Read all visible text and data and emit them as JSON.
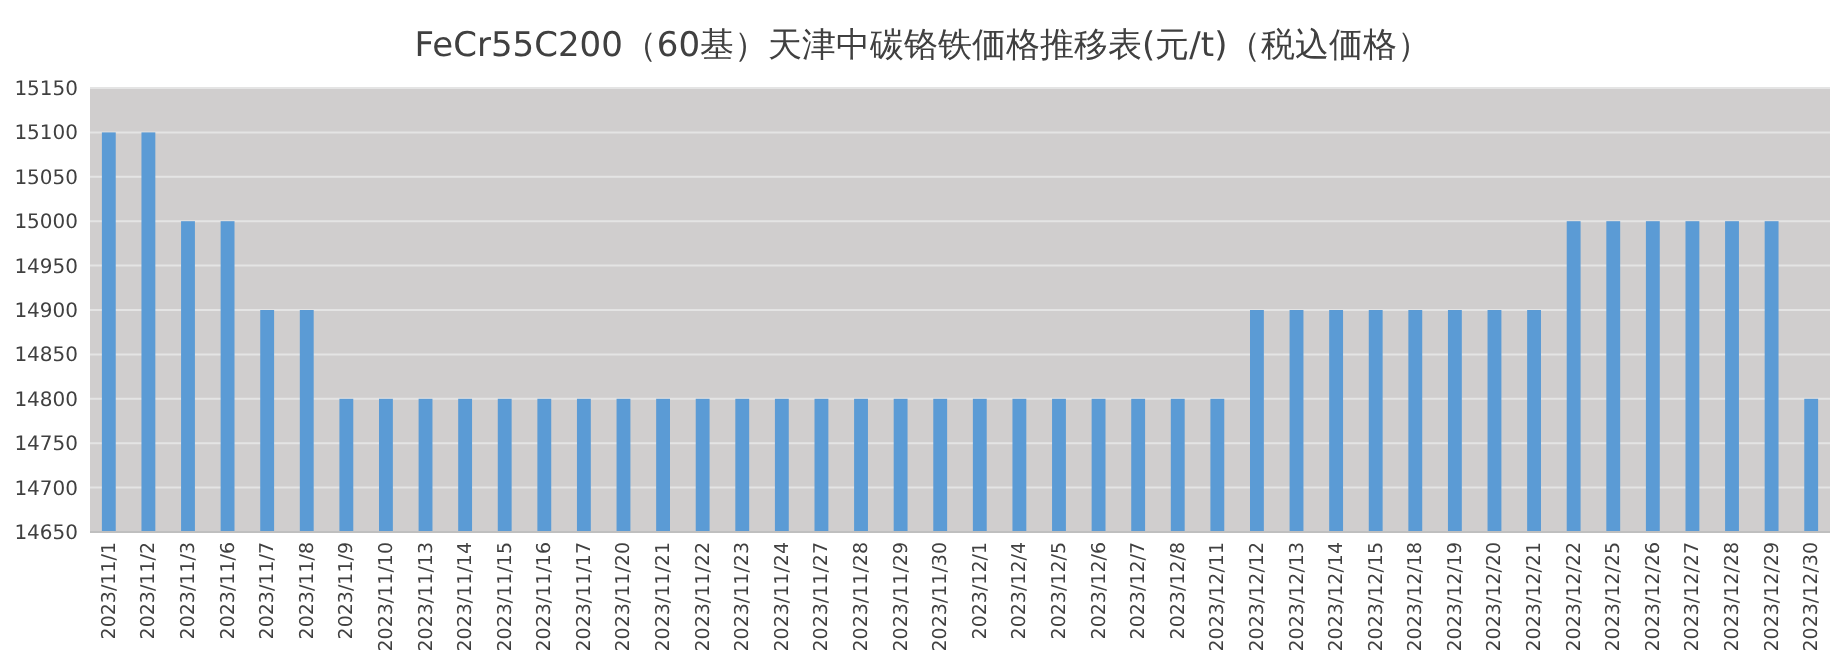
{
  "chart_data": {
    "type": "bar",
    "title": "FeCr55C200（60基）天津中碳铬铁価格推移表(元/t)（税込価格）",
    "categories": [
      "2023/11/1",
      "2023/11/2",
      "2023/11/3",
      "2023/11/6",
      "2023/11/7",
      "2023/11/8",
      "2023/11/9",
      "2023/11/10",
      "2023/11/13",
      "2023/11/14",
      "2023/11/15",
      "2023/11/16",
      "2023/11/17",
      "2023/11/20",
      "2023/11/21",
      "2023/11/22",
      "2023/11/23",
      "2023/11/24",
      "2023/11/27",
      "2023/11/28",
      "2023/11/29",
      "2023/11/30",
      "2023/12/1",
      "2023/12/4",
      "2023/12/5",
      "2023/12/6",
      "2023/12/7",
      "2023/12/8",
      "2023/12/11",
      "2023/12/12",
      "2023/12/13",
      "2023/12/14",
      "2023/12/15",
      "2023/12/18",
      "2023/12/19",
      "2023/12/20",
      "2023/12/21",
      "2023/12/22",
      "2023/12/25",
      "2023/12/26",
      "2023/12/27",
      "2023/12/28",
      "2023/12/29",
      "2023/12/30"
    ],
    "values": [
      15100,
      15100,
      15000,
      15000,
      14900,
      14900,
      14800,
      14800,
      14800,
      14800,
      14800,
      14800,
      14800,
      14800,
      14800,
      14800,
      14800,
      14800,
      14800,
      14800,
      14800,
      14800,
      14800,
      14800,
      14800,
      14800,
      14800,
      14800,
      14800,
      14900,
      14900,
      14900,
      14900,
      14900,
      14900,
      14900,
      14900,
      15000,
      15000,
      15000,
      15000,
      15000,
      15000,
      14800
    ],
    "color": "#5b9bd5",
    "ylim": [
      14650,
      15150
    ],
    "yticks": [
      14650,
      14700,
      14750,
      14800,
      14850,
      14900,
      14950,
      15000,
      15050,
      15100,
      15150
    ],
    "grid": "y"
  }
}
